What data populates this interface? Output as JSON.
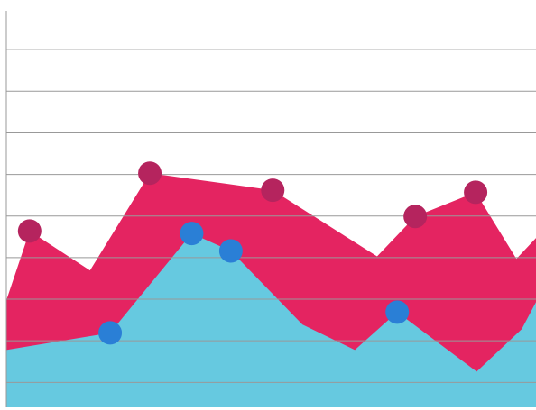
{
  "chart_data": {
    "type": "area",
    "xlim": [
      0,
      100
    ],
    "ylim": [
      0.4,
      10
    ],
    "yticks": [
      1,
      2,
      3,
      4,
      5,
      6,
      7,
      8,
      9
    ],
    "grid": true,
    "series": [
      {
        "type": "area",
        "color": "#e42461",
        "x": [
          0,
          4.4,
          15.8,
          27.1,
          50.3,
          70.0,
          77.2,
          88.6,
          96.3,
          100
        ],
        "values": [
          2.97,
          4.64,
          3.69,
          6.03,
          5.62,
          4.03,
          4.99,
          5.57,
          3.97,
          4.47
        ]
      },
      {
        "type": "area",
        "color": "#66c9e0",
        "x": [
          0,
          19.6,
          35.0,
          42.4,
          55.9,
          65.8,
          73.8,
          88.8,
          97.3,
          100
        ],
        "values": [
          1.78,
          2.19,
          4.58,
          4.16,
          2.39,
          1.78,
          2.69,
          1.26,
          2.28,
          2.93
        ]
      },
      {
        "type": "scatter",
        "color": "#b5245e",
        "x": [
          4.4,
          27.1,
          50.3,
          77.2,
          88.6
        ],
        "values": [
          4.64,
          6.03,
          5.62,
          4.99,
          5.57
        ]
      },
      {
        "type": "scatter",
        "color": "#2a7fd6",
        "x": [
          19.6,
          35.0,
          42.4,
          73.8
        ],
        "values": [
          2.19,
          4.58,
          4.16,
          2.69
        ]
      }
    ]
  }
}
